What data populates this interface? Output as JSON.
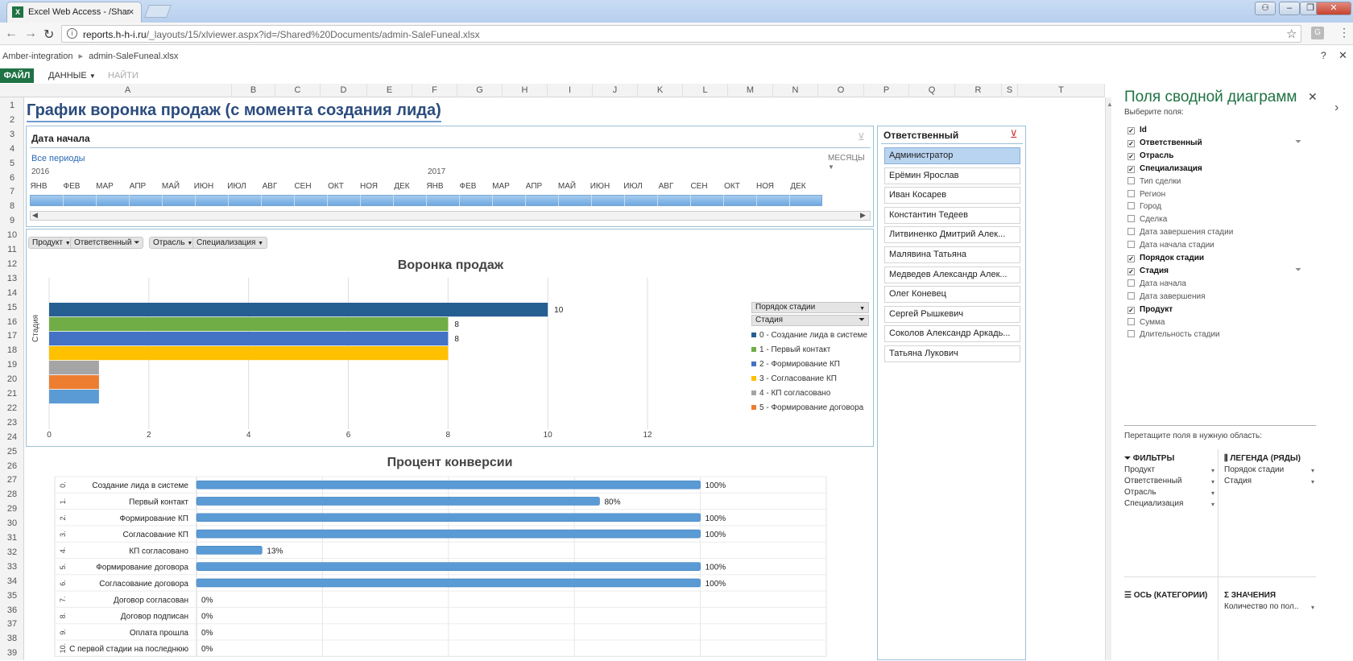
{
  "browser": {
    "tab_title": "Excel Web Access - /Shar",
    "tab_icon_label": "X",
    "url_host": "reports.h-h-i.ru",
    "url_path": "/_layouts/15/xlviewer.aspx?id=/Shared%20Documents/admin-SaleFuneal.xlsx",
    "ext_icon_label": "G"
  },
  "excel": {
    "breadcrumb_site": "Amber-integration",
    "breadcrumb_file": "admin-SaleFuneal.xlsx",
    "file_label": "ФАЙЛ",
    "data_menu": "ДАННЫЕ",
    "find_menu": "НАЙТИ",
    "columns": [
      "A",
      "B",
      "C",
      "D",
      "E",
      "F",
      "G",
      "H",
      "I",
      "J",
      "K",
      "L",
      "M",
      "N",
      "O",
      "P",
      "Q",
      "R",
      "S",
      "T"
    ],
    "rows": [
      "1",
      "2",
      "3",
      "4",
      "5",
      "6",
      "7",
      "8",
      "9",
      "10",
      "11",
      "12",
      "13",
      "14",
      "15",
      "16",
      "17",
      "18",
      "19",
      "20",
      "21",
      "22",
      "23",
      "24",
      "25",
      "26",
      "27",
      "28",
      "29",
      "30",
      "31",
      "32",
      "33",
      "34",
      "35",
      "36",
      "37",
      "38",
      "39"
    ]
  },
  "sheet": {
    "title": "График воронка продаж (с момента создания лида)"
  },
  "timeline": {
    "title": "Дата начала",
    "all_periods": "Все периоды",
    "level": "МЕСЯЦЫ",
    "year1": "2016",
    "year2": "2017",
    "months": [
      "ЯНВ",
      "ФЕВ",
      "МАР",
      "АПР",
      "МАЙ",
      "ИЮН",
      "ИЮЛ",
      "АВГ",
      "СЕН",
      "ОКТ",
      "НОЯ",
      "ДЕК",
      "ЯНВ",
      "ФЕВ",
      "МАР",
      "АПР",
      "МАЙ",
      "ИЮН",
      "ИЮЛ",
      "АВГ",
      "СЕН",
      "ОКТ",
      "НОЯ",
      "ДЕК"
    ]
  },
  "funnel_filters": [
    "Продукт",
    "Ответственный",
    "Отрасль",
    "Специализация"
  ],
  "chart_data": [
    {
      "type": "bar",
      "orientation": "horizontal",
      "title": "Воронка продаж",
      "ylabel": "Стадия",
      "xlabel": "",
      "xlim": [
        0,
        12
      ],
      "xticks": [
        0,
        2,
        4,
        6,
        8,
        10,
        12
      ],
      "grid": true,
      "legend_position": "right",
      "legend_headers": [
        "Порядок стадии",
        "Стадия"
      ],
      "series": [
        {
          "name": "0 - Создание лида в системе",
          "value": 10,
          "label": "10",
          "color": "#255e91"
        },
        {
          "name": "1 - Первый контакт",
          "value": 8,
          "label": "8",
          "color": "#70ad47"
        },
        {
          "name": "2 - Формирование КП",
          "value": 8,
          "label": "8",
          "color": "#4472c4"
        },
        {
          "name": "3 - Согласование КП",
          "value": 8,
          "label": "",
          "color": "#ffc000"
        },
        {
          "name": "4 - КП согласовано",
          "value": 1,
          "label": "",
          "color": "#a5a5a5"
        },
        {
          "name": "5 - Формирование договора",
          "value": 1,
          "label": "",
          "color": "#ed7d31"
        },
        {
          "name": "",
          "value": 1,
          "label": "",
          "color": "#5b9bd5"
        }
      ]
    },
    {
      "type": "bar",
      "orientation": "horizontal",
      "title": "Процент конверсии",
      "xlabel": "",
      "ylabel": "",
      "xlim": [
        0,
        125
      ],
      "grid": true,
      "categories": [
        {
          "code": "0.",
          "label": "Создание лида в системе",
          "value": 100,
          "value_label": "100%"
        },
        {
          "code": "1.",
          "label": "Первый контакт",
          "value": 80,
          "value_label": "80%"
        },
        {
          "code": "2.",
          "label": "Формирование КП",
          "value": 100,
          "value_label": "100%"
        },
        {
          "code": "3.",
          "label": "Согласование КП",
          "value": 100,
          "value_label": "100%"
        },
        {
          "code": "4.",
          "label": "КП согласовано",
          "value": 13,
          "value_label": "13%"
        },
        {
          "code": "5.",
          "label": "Формирование договора",
          "value": 100,
          "value_label": "100%"
        },
        {
          "code": "6.",
          "label": "Согласование договора",
          "value": 100,
          "value_label": "100%"
        },
        {
          "code": "7.",
          "label": "Договор согласован",
          "value": 0,
          "value_label": "0%"
        },
        {
          "code": "8.",
          "label": "Договор подписан",
          "value": 0,
          "value_label": "0%"
        },
        {
          "code": "9.",
          "label": "Оплата прошла",
          "value": 0,
          "value_label": "0%"
        },
        {
          "code": "10.",
          "label": "С первой стадии на последнюю",
          "value": 0,
          "value_label": "0%"
        }
      ],
      "color": "#5b9bd5"
    }
  ],
  "slicer": {
    "title": "Ответственный",
    "items": [
      {
        "label": "Администратор",
        "selected": true
      },
      {
        "label": "Ерёмин Ярослав",
        "selected": false
      },
      {
        "label": "Иван Косарев",
        "selected": false
      },
      {
        "label": "Константин Тедеев",
        "selected": false
      },
      {
        "label": "Литвиненко Дмитрий Алек...",
        "selected": false
      },
      {
        "label": "Малявина Татьяна",
        "selected": false
      },
      {
        "label": "Медведев Александр Алек...",
        "selected": false
      },
      {
        "label": "Олег Коневец",
        "selected": false
      },
      {
        "label": "Сергей Рышкевич",
        "selected": false
      },
      {
        "label": "Соколов Александр Аркадь...",
        "selected": false
      },
      {
        "label": "Татьяна Лукович",
        "selected": false
      }
    ]
  },
  "pane": {
    "title": "Поля сводной диаграмм",
    "subtitle": "Выберите поля:",
    "fields": [
      {
        "label": "Id",
        "checked": true,
        "filter": false
      },
      {
        "label": "Ответственный",
        "checked": true,
        "filter": true
      },
      {
        "label": "Отрасль",
        "checked": true,
        "filter": false
      },
      {
        "label": "Специализация",
        "checked": true,
        "filter": false
      },
      {
        "label": "Тип сделки",
        "checked": false,
        "filter": false
      },
      {
        "label": "Регион",
        "checked": false,
        "filter": false
      },
      {
        "label": "Город",
        "checked": false,
        "filter": false
      },
      {
        "label": "Сделка",
        "checked": false,
        "filter": false
      },
      {
        "label": "Дата завершения стадии",
        "checked": false,
        "filter": false
      },
      {
        "label": "Дата начала стадии",
        "checked": false,
        "filter": false
      },
      {
        "label": "Порядок стадии",
        "checked": true,
        "filter": false
      },
      {
        "label": "Стадия",
        "checked": true,
        "filter": true
      },
      {
        "label": "Дата начала",
        "checked": false,
        "filter": false
      },
      {
        "label": "Дата завершения",
        "checked": false,
        "filter": false
      },
      {
        "label": "Продукт",
        "checked": true,
        "filter": false
      },
      {
        "label": "Сумма",
        "checked": false,
        "filter": false
      },
      {
        "label": "Длительность стадии",
        "checked": false,
        "filter": false
      }
    ],
    "drag_hint": "Перетащите поля в нужную область:",
    "areas": {
      "filters_title": "ФИЛЬТРЫ",
      "filters": [
        "Продукт",
        "Ответственный",
        "Отрасль",
        "Специализация"
      ],
      "legend_title": "ЛЕГЕНДА (РЯДЫ)",
      "legend": [
        "Порядок стадии",
        "Стадия"
      ],
      "axis_title": "ОСЬ (КАТЕГОРИИ)",
      "values_title": "ЗНАЧЕНИЯ",
      "values": [
        "Количество по пол.."
      ]
    }
  }
}
